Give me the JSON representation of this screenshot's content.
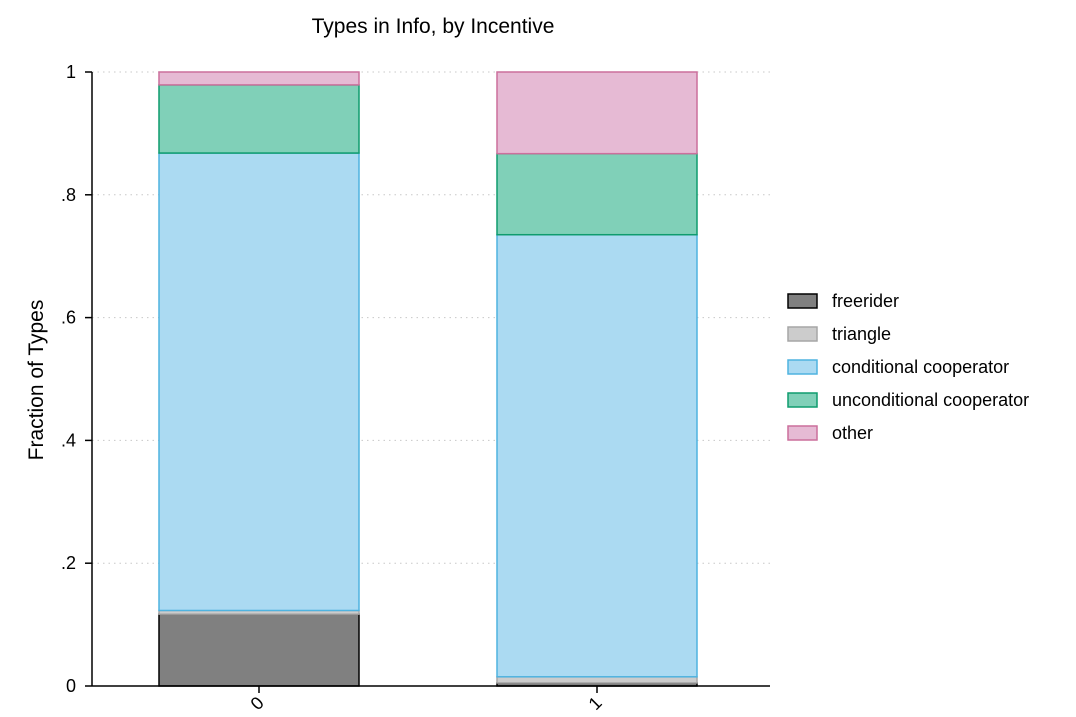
{
  "chart_data": {
    "type": "bar",
    "stacked": true,
    "title": "Types in Info, by Incentive",
    "xlabel": "",
    "ylabel": "Fraction of Types",
    "ylim": [
      0,
      1
    ],
    "yticks": [
      0,
      0.2,
      0.4,
      0.6,
      0.8,
      1
    ],
    "ytick_labels": [
      "0",
      ".2",
      ".4",
      ".6",
      ".8",
      "1"
    ],
    "categories": [
      "0",
      "1"
    ],
    "grid": "horizontal dotted",
    "legend_position": "right",
    "series": [
      {
        "name": "freerider",
        "values": [
          0.117,
          0.005
        ],
        "color": "#808080",
        "stroke": "#000000"
      },
      {
        "name": "triangle",
        "values": [
          0.006,
          0.01
        ],
        "color": "#cccccc",
        "stroke": "#a6a6a6"
      },
      {
        "name": "conditional cooperator",
        "values": [
          0.745,
          0.72
        ],
        "color": "#abdaf2",
        "stroke": "#4fb3e0"
      },
      {
        "name": "unconditional cooperator",
        "values": [
          0.111,
          0.132
        ],
        "color": "#80d0b8",
        "stroke": "#0f9c6e"
      },
      {
        "name": "other",
        "values": [
          0.021,
          0.133
        ],
        "color": "#e6bad4",
        "stroke": "#cc6f9c"
      }
    ]
  }
}
